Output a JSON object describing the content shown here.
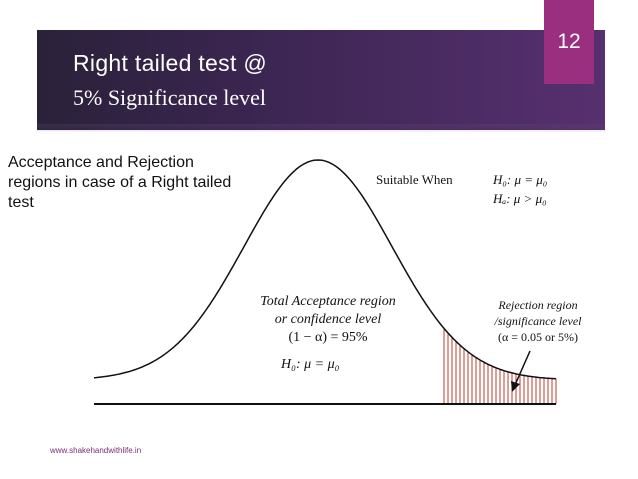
{
  "slide": {
    "number": "12",
    "title_line1": "Right tailed test @",
    "title_line2": "5% Significance level"
  },
  "caption": "Acceptance and Rejection regions in case of a Right tailed test",
  "suitable_label": "Suitable When",
  "hypotheses": {
    "h0": "H₀: μ = μ₀",
    "ha": "Hₐ: μ > μ₀"
  },
  "acceptance": {
    "line1": "Total Acceptance region",
    "line2": "or confidence level",
    "line3": "(1 − α)  =  95%"
  },
  "h0_bottom": "H₀: μ = μ₀",
  "rejection": {
    "line1": "Rejection region",
    "line2": "/significance level",
    "line3": "(α = 0.05 or 5%)"
  },
  "footer_url": "www.shakehandwithlife.in",
  "colors": {
    "header_bg": "#3e2655",
    "slide_number_bg": "#9a2f7f",
    "rejection_hatch": "#c0392b",
    "arrow": "#111111"
  }
}
